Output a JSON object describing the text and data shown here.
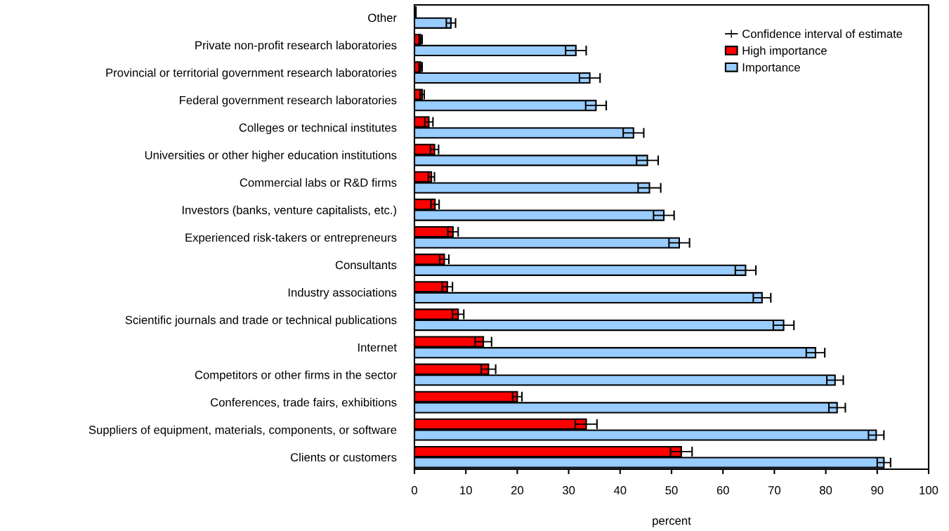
{
  "chart_data": {
    "type": "bar",
    "orientation": "horizontal",
    "xlabel": "percent",
    "categories": [
      "Other",
      "Private non-profit research laboratories",
      "Provincial or territorial government research laboratories",
      "Federal government research laboratories",
      "Colleges or technical institutes",
      "Universities or other higher education institutions",
      "Commercial labs or R&D firms",
      "Investors (banks, venture capitalists, etc.)",
      "Experienced risk-takers or entrepreneurs",
      "Consultants",
      "Industry associations",
      "Scientific journals and trade or technical publications",
      "Internet",
      "Competitors or other firms in the sector",
      "Conferences, trade fairs, exhibitions",
      "Suppliers of equipment, materials, components, or software",
      "Clients or customers"
    ],
    "series": [
      {
        "name": "High importance",
        "color": "#ff0000",
        "values": [
          0.3,
          1.2,
          1.2,
          1.5,
          2.8,
          3.9,
          3.3,
          4.0,
          7.5,
          5.8,
          6.4,
          8.5,
          13.4,
          14.4,
          20.0,
          33.4,
          51.9
        ],
        "errors": [
          null,
          0.3,
          0.3,
          0.4,
          0.8,
          0.8,
          0.6,
          0.8,
          1.0,
          0.9,
          1.0,
          1.1,
          1.6,
          1.4,
          0.9,
          2.1,
          2.1
        ]
      },
      {
        "name": "Importance",
        "color": "#99ccff",
        "values": [
          7.1,
          31.4,
          34.1,
          35.3,
          42.6,
          45.3,
          45.7,
          48.5,
          51.5,
          64.4,
          67.6,
          71.8,
          78.0,
          81.8,
          82.2,
          89.8,
          91.3
        ],
        "errors": [
          0.9,
          2.0,
          2.0,
          2.0,
          2.0,
          2.1,
          2.2,
          2.0,
          2.0,
          2.0,
          1.7,
          2.0,
          1.8,
          1.6,
          1.6,
          1.5,
          1.3
        ]
      }
    ],
    "annotations": [
      "Confidence interval of estimate"
    ],
    "xlim": [
      0,
      100
    ],
    "xticks": [
      0,
      10,
      20,
      30,
      40,
      50,
      60,
      70,
      80,
      90,
      100
    ],
    "grid": false,
    "legend": "top right"
  }
}
